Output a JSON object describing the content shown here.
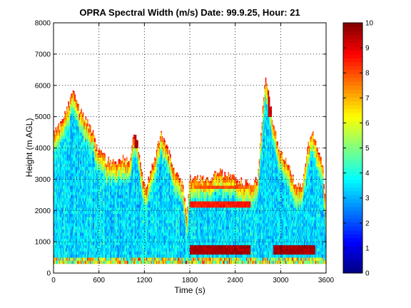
{
  "chart_data": {
    "type": "heatmap",
    "title": "OPRA Spectral Width (m/s)  Date: 99.9.25, Hour: 21",
    "xlabel": "Time (s)",
    "ylabel": "Height (m AGL)",
    "xlim": [
      0,
      3600
    ],
    "ylim": [
      0,
      8000
    ],
    "x_ticks": [
      0,
      600,
      1200,
      1800,
      2400,
      3000,
      3600
    ],
    "y_ticks": [
      0,
      1000,
      2000,
      3000,
      4000,
      5000,
      6000,
      7000,
      8000
    ],
    "grid": true,
    "colorbar": {
      "range": [
        0,
        10
      ],
      "ticks": [
        0,
        1,
        2,
        3,
        4,
        5,
        6,
        7,
        8,
        9,
        10
      ],
      "colormap": "jet"
    },
    "min_height_m": 300,
    "echo_top_profile": {
      "time_s": [
        0,
        120,
        250,
        350,
        450,
        520,
        560,
        700,
        800,
        900,
        1000,
        1050,
        1100,
        1150,
        1200,
        1280,
        1350,
        1420,
        1500,
        1560,
        1620,
        1700,
        1760,
        1800,
        2000,
        2200,
        2400,
        2600,
        2700,
        2800,
        2900,
        3000,
        3100,
        3200,
        3300,
        3350,
        3420,
        3480,
        3560,
        3600
      ],
      "top_m": [
        4500,
        4800,
        5800,
        5200,
        4800,
        4500,
        4000,
        3600,
        3500,
        3700,
        3500,
        4300,
        4300,
        3600,
        2700,
        3200,
        3800,
        4500,
        4000,
        3600,
        3200,
        2900,
        1800,
        3000,
        3000,
        3200,
        3000,
        2800,
        3100,
        6300,
        4800,
        3800,
        3500,
        2700,
        2900,
        4000,
        4500,
        4000,
        3500,
        1500
      ]
    },
    "high_width_bands": [
      {
        "t_start": 1800,
        "t_end": 2600,
        "h_low": 600,
        "h_high": 900,
        "value": 9.6
      },
      {
        "t_start": 2900,
        "t_end": 3450,
        "h_low": 600,
        "h_high": 900,
        "value": 9.6
      },
      {
        "t_start": 1800,
        "t_end": 2600,
        "h_low": 2100,
        "h_high": 2300,
        "value": 8.5
      },
      {
        "t_start": 1850,
        "t_end": 2550,
        "h_low": 2650,
        "h_high": 2800,
        "value": 8.0
      },
      {
        "t_start": 1060,
        "t_end": 1140,
        "h_low": 4000,
        "h_high": 4500,
        "value": 9.5
      },
      {
        "t_start": 2830,
        "t_end": 2920,
        "h_low": 5000,
        "h_high": 6300,
        "value": 9.2
      }
    ],
    "colors": {
      "background": "#ffffff",
      "axes": "#000000",
      "grid": "#000000"
    }
  }
}
